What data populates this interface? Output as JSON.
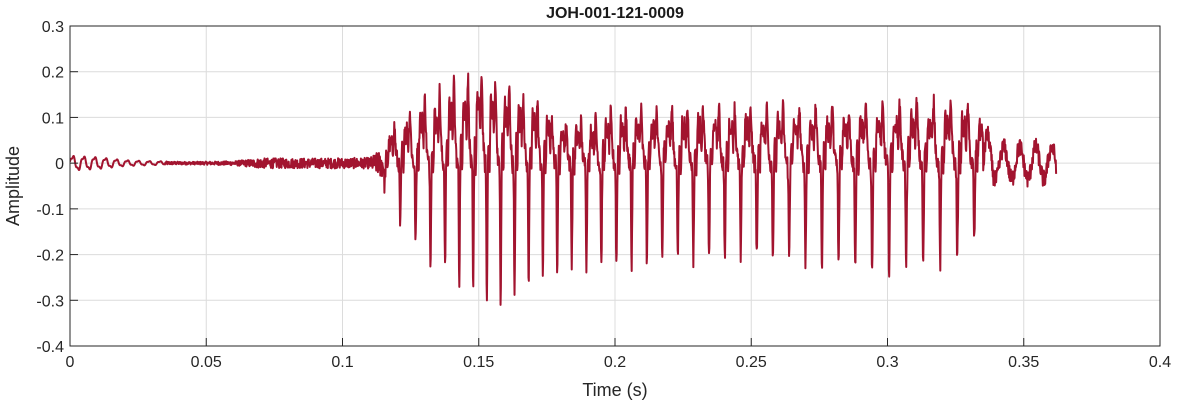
{
  "chart_data": {
    "type": "line",
    "title": "JOH-001-121-0009",
    "xlabel": "Time (s)",
    "ylabel": "Amplitude",
    "xlim": [
      0,
      0.4
    ],
    "ylim": [
      -0.4,
      0.3
    ],
    "x_ticks": [
      0,
      0.05,
      0.1,
      0.15,
      0.2,
      0.25,
      0.3,
      0.35,
      0.4
    ],
    "x_tick_labels": [
      "0",
      "0.05",
      "0.1",
      "0.15",
      "0.2",
      "0.25",
      "0.3",
      "0.35",
      "0.4"
    ],
    "y_ticks": [
      -0.4,
      -0.3,
      -0.2,
      -0.1,
      0,
      0.1,
      0.2,
      0.3
    ],
    "y_tick_labels": [
      "-0.4",
      "-0.3",
      "-0.2",
      "-0.1",
      "0",
      "0.1",
      "0.2",
      "0.3"
    ],
    "grid": true,
    "line_color": "#A2142F",
    "series": [
      {
        "waveform": "speech",
        "duration_s": 0.362,
        "peak_max": 0.206,
        "peak_min": -0.33,
        "envelope": {
          "t": [
            0,
            0.01,
            0.02,
            0.03,
            0.045,
            0.06,
            0.07,
            0.09,
            0.11,
            0.115,
            0.12,
            0.13,
            0.14,
            0.15,
            0.16,
            0.17,
            0.18,
            0.19,
            0.2,
            0.22,
            0.24,
            0.26,
            0.28,
            0.3,
            0.31,
            0.32,
            0.33,
            0.335,
            0.34,
            0.35,
            0.362
          ],
          "upper": [
            0.015,
            0.012,
            0.006,
            0.004,
            0.003,
            0.004,
            0.01,
            0.01,
            0.012,
            0.03,
            0.09,
            0.14,
            0.17,
            0.2,
            0.17,
            0.14,
            0.09,
            0.09,
            0.11,
            0.12,
            0.12,
            0.12,
            0.12,
            0.12,
            0.13,
            0.13,
            0.12,
            0.11,
            0.05,
            0.05,
            0.05
          ],
          "lower": [
            -0.02,
            -0.012,
            -0.006,
            -0.004,
            -0.003,
            -0.005,
            -0.012,
            -0.012,
            -0.012,
            -0.04,
            -0.13,
            -0.2,
            -0.24,
            -0.3,
            -0.32,
            -0.25,
            -0.22,
            -0.22,
            -0.22,
            -0.21,
            -0.21,
            -0.2,
            -0.22,
            -0.23,
            -0.22,
            -0.22,
            -0.2,
            -0.12,
            -0.05,
            -0.05,
            -0.05
          ]
        },
        "pitch_hz": {
          "t": [
            0.115,
            0.15,
            0.2,
            0.3,
            0.335
          ],
          "f0": [
            170,
            200,
            180,
            160,
            160
          ]
        }
      }
    ]
  }
}
